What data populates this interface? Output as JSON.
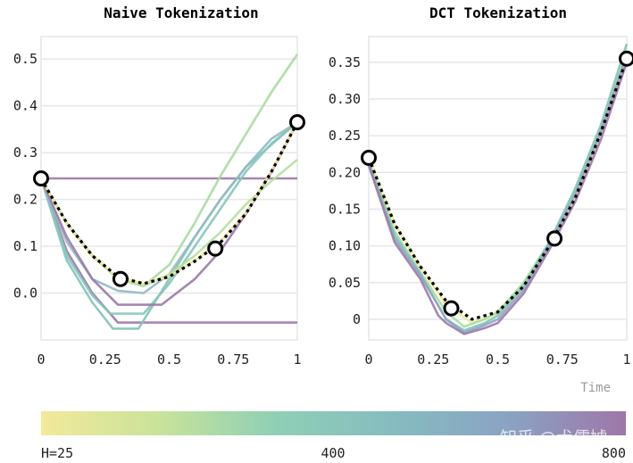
{
  "chart_data": [
    {
      "type": "line",
      "title": "Naive Tokenization",
      "xlabel": "",
      "ylabel": "",
      "xlim": [
        0,
        1
      ],
      "ylim": [
        -0.1,
        0.548
      ],
      "xticks": [
        "0",
        "0.25",
        "0.5",
        "0.75",
        "1"
      ],
      "xtick_values": [
        0,
        0.25,
        0.5,
        0.75,
        1
      ],
      "yticks": [
        "0.0",
        "0.1",
        "0.2",
        "0.3",
        "0.4",
        "0.5"
      ],
      "ytick_values": [
        0,
        0.1,
        0.2,
        0.3,
        0.4,
        0.5
      ],
      "grid": true,
      "series": [
        {
          "color": "#9b7aa8",
          "x": [
            0,
            1
          ],
          "y": [
            0.245,
            0.245
          ]
        },
        {
          "color": "#9b7aa8",
          "x": [
            0,
            0.1,
            0.2,
            0.3,
            1
          ],
          "y": [
            0.245,
            0.09,
            0.0,
            -0.063,
            -0.063
          ]
        },
        {
          "color": "#84c3b7",
          "x": [
            0,
            0.1,
            0.2,
            0.28,
            0.38,
            0.5,
            0.6,
            0.7,
            0.8,
            1
          ],
          "y": [
            0.245,
            0.07,
            -0.02,
            -0.076,
            -0.076,
            0.03,
            0.12,
            0.2,
            0.27,
            0.365
          ]
        },
        {
          "color": "#86c6bd",
          "x": [
            0,
            0.1,
            0.2,
            0.27,
            0.4,
            0.5,
            0.6,
            0.7,
            0.8,
            0.9,
            1
          ],
          "y": [
            0.245,
            0.08,
            -0.005,
            -0.044,
            -0.044,
            0.02,
            0.1,
            0.18,
            0.26,
            0.32,
            0.365
          ]
        },
        {
          "color": "#93b9c2",
          "x": [
            0,
            0.1,
            0.2,
            0.3,
            0.4,
            0.5,
            0.6,
            0.7,
            0.8,
            0.9,
            1
          ],
          "y": [
            0.245,
            0.11,
            0.03,
            0.005,
            0.0,
            0.04,
            0.12,
            0.2,
            0.27,
            0.33,
            0.365
          ]
        },
        {
          "color": "#9b7aa8",
          "x": [
            0,
            0.1,
            0.2,
            0.3,
            0.47,
            0.6,
            0.7,
            0.8,
            0.9,
            1
          ],
          "y": [
            0.245,
            0.12,
            0.03,
            -0.025,
            -0.025,
            0.03,
            0.09,
            0.17,
            0.26,
            0.365
          ]
        },
        {
          "color": "#a9dca0",
          "x": [
            0,
            0.1,
            0.2,
            0.3,
            0.4,
            0.5,
            0.6,
            0.7,
            0.8,
            0.9,
            1
          ],
          "y": [
            0.245,
            0.15,
            0.08,
            0.03,
            0.015,
            0.06,
            0.15,
            0.25,
            0.34,
            0.43,
            0.51
          ]
        },
        {
          "color": "#b6e0a0",
          "x": [
            0,
            0.1,
            0.2,
            0.3,
            0.4,
            0.5,
            0.6,
            0.7,
            0.8,
            0.9,
            1
          ],
          "y": [
            0.245,
            0.15,
            0.08,
            0.03,
            0.015,
            0.04,
            0.08,
            0.13,
            0.19,
            0.24,
            0.285
          ]
        },
        {
          "color": "#ede79a",
          "x": [
            0,
            0.1,
            0.2,
            0.3,
            0.4,
            0.5,
            0.6,
            0.7,
            0.8,
            0.9,
            1
          ],
          "y": [
            0.245,
            0.148,
            0.078,
            0.033,
            0.02,
            0.036,
            0.07,
            0.11,
            0.172,
            0.262,
            0.365
          ]
        }
      ],
      "ground_truth": {
        "x": [
          0,
          0.1,
          0.2,
          0.3,
          0.4,
          0.5,
          0.6,
          0.7,
          0.8,
          0.9,
          1
        ],
        "y": [
          0.245,
          0.15,
          0.08,
          0.035,
          0.02,
          0.035,
          0.068,
          0.108,
          0.17,
          0.26,
          0.365
        ]
      },
      "points": {
        "x": [
          0,
          0.31,
          0.68,
          1
        ],
        "y": [
          0.245,
          0.03,
          0.095,
          0.365
        ]
      }
    },
    {
      "type": "line",
      "title": "DCT Tokenization",
      "xlabel": "Time",
      "ylabel": "",
      "xlim": [
        0,
        1
      ],
      "ylim": [
        -0.028,
        0.385
      ],
      "xticks": [
        "0",
        "0.25",
        "0.5",
        "0.75",
        "1"
      ],
      "xtick_values": [
        0,
        0.25,
        0.5,
        0.75,
        1
      ],
      "yticks": [
        "0",
        "0.05",
        "0.10",
        "0.15",
        "0.20",
        "0.25",
        "0.30",
        "0.35"
      ],
      "ytick_values": [
        0,
        0.05,
        0.1,
        0.15,
        0.2,
        0.25,
        0.3,
        0.35
      ],
      "grid": true,
      "series": [
        {
          "color": "#ede79a",
          "x": [
            0,
            0.1,
            0.2,
            0.3,
            0.4,
            0.5,
            0.6,
            0.7,
            0.8,
            0.9,
            1
          ],
          "y": [
            0.22,
            0.13,
            0.072,
            0.02,
            -0.005,
            0.008,
            0.045,
            0.1,
            0.165,
            0.255,
            0.355
          ]
        },
        {
          "color": "#a9dca0",
          "x": [
            0,
            0.1,
            0.2,
            0.3,
            0.37,
            0.45,
            0.5,
            0.6,
            0.7,
            0.8,
            0.9,
            1
          ],
          "y": [
            0.215,
            0.12,
            0.065,
            0.01,
            -0.01,
            0.0,
            0.01,
            0.05,
            0.105,
            0.175,
            0.26,
            0.365
          ]
        },
        {
          "color": "#84c3b7",
          "x": [
            0,
            0.1,
            0.2,
            0.3,
            0.37,
            0.45,
            0.5,
            0.6,
            0.7,
            0.8,
            0.9,
            1
          ],
          "y": [
            0.212,
            0.115,
            0.062,
            0.0,
            -0.015,
            -0.005,
            0.005,
            0.045,
            0.105,
            0.178,
            0.265,
            0.375
          ]
        },
        {
          "color": "#8fa4c4",
          "x": [
            0,
            0.1,
            0.2,
            0.3,
            0.37,
            0.45,
            0.5,
            0.6,
            0.7,
            0.8,
            0.9,
            1
          ],
          "y": [
            0.21,
            0.11,
            0.06,
            0.0,
            -0.018,
            -0.008,
            0.0,
            0.04,
            0.1,
            0.17,
            0.255,
            0.36
          ]
        },
        {
          "color": "#9b7aa8",
          "x": [
            0,
            0.1,
            0.2,
            0.27,
            0.3,
            0.37,
            0.45,
            0.5,
            0.6,
            0.7,
            0.8,
            0.9,
            1
          ],
          "y": [
            0.21,
            0.105,
            0.055,
            0.005,
            -0.005,
            -0.02,
            -0.012,
            -0.005,
            0.035,
            0.095,
            0.16,
            0.245,
            0.35
          ]
        }
      ],
      "ground_truth": {
        "x": [
          0,
          0.1,
          0.2,
          0.3,
          0.4,
          0.5,
          0.6,
          0.7,
          0.8,
          0.9,
          1
        ],
        "y": [
          0.22,
          0.13,
          0.072,
          0.025,
          0.0,
          0.01,
          0.045,
          0.1,
          0.165,
          0.255,
          0.355
        ]
      },
      "points": {
        "x": [
          0,
          0.32,
          0.72,
          1
        ],
        "y": [
          0.22,
          0.015,
          0.11,
          0.355
        ]
      }
    }
  ],
  "colorbar": {
    "labels": [
      "H=25",
      "400",
      "800"
    ],
    "colors": [
      "#f3e99a",
      "#c9e39a",
      "#8fd0b5",
      "#86bcbf",
      "#8aa3c3",
      "#9e76a8"
    ]
  },
  "watermark": "知乎 @犬儒虓"
}
